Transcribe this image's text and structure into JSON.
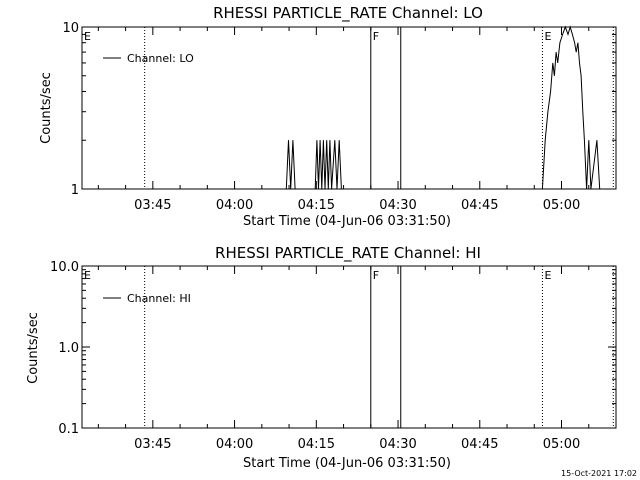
{
  "chart_data": [
    {
      "type": "line",
      "title": "RHESSI PARTICLE_RATE Channel: LO",
      "xlabel": "Start Time (04-Jun-06 03:31:50)",
      "ylabel": "Counts/sec",
      "yscale": "log",
      "ylim": [
        1,
        10
      ],
      "xlim": [
        "03:32",
        "05:10"
      ],
      "x_ticks": [
        "03:45",
        "04:00",
        "04:15",
        "04:30",
        "04:45",
        "05:00"
      ],
      "y_ticks": [
        "1",
        "10"
      ],
      "legend": {
        "position": "top-left",
        "entries": [
          "Channel: LO"
        ]
      },
      "markers": [
        {
          "label": "E",
          "time": "03:32",
          "style": "none"
        },
        {
          "label": "",
          "time": "03:43.5",
          "style": "dotted"
        },
        {
          "label": "F",
          "time": "04:25",
          "style": "solid"
        },
        {
          "label": "",
          "time": "04:30.5",
          "style": "solid"
        },
        {
          "label": "E",
          "time": "04:56.5",
          "style": "dotted"
        },
        {
          "label": "",
          "time": "05:09.5",
          "style": "dotted"
        }
      ],
      "series": [
        {
          "name": "Channel: LO",
          "points": [
            [
              "04:09.5",
              1
            ],
            [
              "04:09.9",
              2
            ],
            [
              "04:10.3",
              1
            ],
            [
              "04:10.7",
              2
            ],
            [
              "04:11.1",
              1
            ],
            [
              "04:14.8",
              1
            ],
            [
              "04:15.1",
              2
            ],
            [
              "04:15.4",
              1
            ],
            [
              "04:15.7",
              2
            ],
            [
              "04:16.0",
              1
            ],
            [
              "04:16.3",
              2
            ],
            [
              "04:16.6",
              1
            ],
            [
              "04:16.9",
              2
            ],
            [
              "04:17.2",
              1
            ],
            [
              "04:17.5",
              2
            ],
            [
              "04:17.8",
              1
            ],
            [
              "04:18.4",
              2
            ],
            [
              "04:18.8",
              1
            ],
            [
              "04:19.2",
              2
            ],
            [
              "04:19.6",
              1
            ],
            [
              "04:56.5",
              1
            ],
            [
              "04:57.0",
              2
            ],
            [
              "04:57.5",
              3
            ],
            [
              "04:58.0",
              4
            ],
            [
              "04:58.4",
              6
            ],
            [
              "04:58.7",
              5
            ],
            [
              "04:59.0",
              7
            ],
            [
              "04:59.3",
              6
            ],
            [
              "04:59.7",
              8
            ],
            [
              "05:00.2",
              9
            ],
            [
              "05:00.7",
              10
            ],
            [
              "05:01.2",
              9
            ],
            [
              "05:01.6",
              10
            ],
            [
              "05:02.0",
              9
            ],
            [
              "05:02.4",
              8
            ],
            [
              "05:02.7",
              7
            ],
            [
              "05:03.0",
              8
            ],
            [
              "05:03.3",
              6
            ],
            [
              "05:03.6",
              5
            ],
            [
              "05:03.9",
              3
            ],
            [
              "05:04.2",
              2
            ],
            [
              "05:04.6",
              1
            ],
            [
              "05:05.0",
              2
            ],
            [
              "05:05.4",
              1
            ],
            [
              "05:06.5",
              2
            ],
            [
              "05:07.0",
              1
            ]
          ]
        }
      ]
    },
    {
      "type": "line",
      "title": "RHESSI PARTICLE_RATE Channel: HI",
      "xlabel": "Start Time (04-Jun-06 03:31:50)",
      "ylabel": "Counts/sec",
      "yscale": "log",
      "ylim": [
        0.1,
        10
      ],
      "xlim": [
        "03:32",
        "05:10"
      ],
      "x_ticks": [
        "03:45",
        "04:00",
        "04:15",
        "04:30",
        "04:45",
        "05:00"
      ],
      "y_ticks": [
        "0.1",
        "1.0",
        "10.0"
      ],
      "legend": {
        "position": "top-left",
        "entries": [
          "Channel: HI"
        ]
      },
      "markers": [
        {
          "label": "E",
          "time": "03:32",
          "style": "none"
        },
        {
          "label": "",
          "time": "03:43.5",
          "style": "dotted"
        },
        {
          "label": "F",
          "time": "04:25",
          "style": "solid"
        },
        {
          "label": "",
          "time": "04:30.5",
          "style": "solid"
        },
        {
          "label": "E",
          "time": "04:56.5",
          "style": "dotted"
        },
        {
          "label": "",
          "time": "05:09.5",
          "style": "dotted"
        }
      ],
      "series": [
        {
          "name": "Channel: HI",
          "points": []
        }
      ]
    }
  ],
  "footer": {
    "timestamp": "15-Oct-2021 17:02"
  }
}
